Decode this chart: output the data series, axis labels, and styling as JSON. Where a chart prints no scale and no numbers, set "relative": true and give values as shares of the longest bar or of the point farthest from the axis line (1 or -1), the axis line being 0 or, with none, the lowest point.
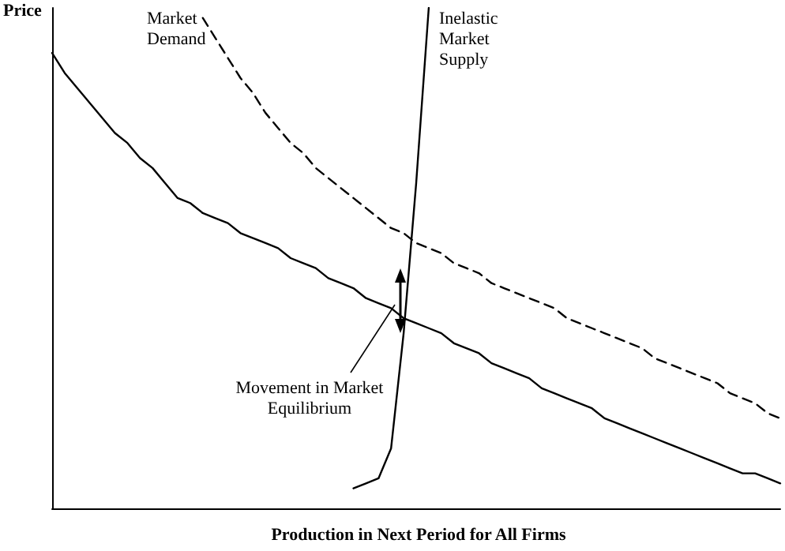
{
  "chart_data": {
    "type": "line",
    "relative": true,
    "xlabel": "Production in Next Period for All Firms",
    "ylabel": "Price",
    "categories": [
      null,
      null,
      null,
      null,
      null,
      null,
      null,
      null,
      null,
      null,
      null,
      null,
      null,
      null,
      null,
      null,
      null,
      null,
      null,
      null,
      null,
      null,
      null,
      null,
      null,
      null,
      null,
      null,
      null,
      null,
      null,
      null,
      null,
      null,
      null,
      null,
      null,
      null,
      null,
      null,
      null,
      null,
      null,
      null,
      null,
      null,
      null,
      null,
      null,
      null,
      null,
      null,
      null,
      null,
      null,
      null,
      null,
      null,
      null
    ],
    "grid": false,
    "legend": false,
    "marker": "none",
    "annotations": [
      "Movement in Market Equilibrium"
    ],
    "series": [
      {
        "color": "#000000",
        "line_style": "solid",
        "values": [
          0.91,
          0.87,
          0.84,
          0.81,
          0.78,
          0.75,
          0.73,
          0.7,
          0.68,
          0.65,
          0.62,
          0.61,
          0.59,
          0.58,
          0.57,
          0.55,
          0.54,
          0.53,
          0.52,
          0.5,
          0.49,
          0.48,
          0.46,
          0.45,
          0.44,
          0.42,
          0.41,
          0.4,
          0.38,
          0.37,
          0.36,
          0.35,
          0.33,
          0.32,
          0.31,
          0.29,
          0.28,
          0.27,
          0.26,
          0.24,
          0.23,
          0.22,
          0.21,
          0.2,
          0.18,
          0.17,
          0.16,
          0.15,
          0.14,
          0.13,
          0.12,
          0.11,
          0.1,
          0.09,
          0.08,
          0.07,
          0.07,
          0.06,
          0.05
        ]
      },
      {
        "name": "Market Demand",
        "color": "#000000",
        "line_style": "dashed",
        "values": [
          null,
          null,
          null,
          null,
          null,
          null,
          null,
          null,
          null,
          null,
          null,
          null,
          0.98,
          0.94,
          0.9,
          0.86,
          0.83,
          0.79,
          0.76,
          0.73,
          0.71,
          0.68,
          0.66,
          0.64,
          0.62,
          0.6,
          0.58,
          0.56,
          0.55,
          0.53,
          0.52,
          0.51,
          0.49,
          0.48,
          0.47,
          0.45,
          0.44,
          0.43,
          0.42,
          0.41,
          0.4,
          0.38,
          0.37,
          0.36,
          0.35,
          0.34,
          0.33,
          0.32,
          0.3,
          0.29,
          0.28,
          0.27,
          0.26,
          0.25,
          0.23,
          0.22,
          0.21,
          0.19,
          0.18
        ]
      },
      {
        "name": "Inelastic Market Supply",
        "color": "#000000",
        "line_style": "solid",
        "values": [
          null,
          null,
          null,
          null,
          null,
          null,
          null,
          null,
          null,
          null,
          null,
          null,
          null,
          null,
          null,
          null,
          null,
          null,
          null,
          null,
          null,
          null,
          null,
          null,
          0.04,
          0.05,
          0.06,
          0.12,
          0.35,
          0.65,
          1.0,
          null,
          null,
          null,
          null,
          null,
          null,
          null,
          null,
          null,
          null,
          null,
          null,
          null,
          null,
          null,
          null,
          null,
          null,
          null,
          null,
          null,
          null,
          null,
          null,
          null,
          null,
          null,
          null
        ]
      }
    ]
  }
}
